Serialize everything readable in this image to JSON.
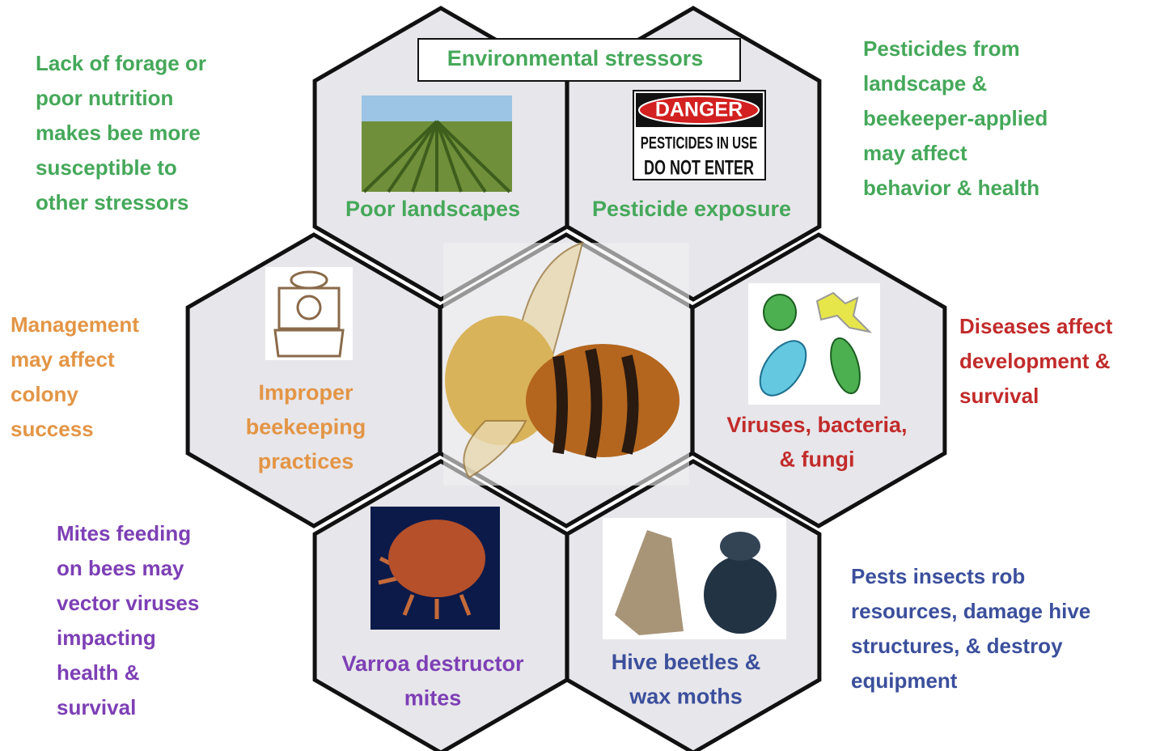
{
  "title": "Environmental stressors",
  "hexagons": [
    {
      "label": [
        "Poor landscapes"
      ]
    },
    {
      "label": [
        "Pesticide exposure"
      ],
      "sign": [
        "DANGER",
        "PESTICIDES IN USE",
        "DO NOT ENTER"
      ]
    },
    {
      "label": [
        "Improper",
        "beekeeping",
        "practices"
      ]
    },
    {
      "label": [
        "Viruses, bacteria,",
        "& fungi"
      ]
    },
    {
      "label": [
        "Varroa destructor",
        "mites"
      ]
    },
    {
      "label": [
        "Hive beetles &",
        "wax moths"
      ]
    }
  ],
  "notes": [
    {
      "lines": [
        "Lack of forage or",
        "poor nutrition",
        "makes bee more",
        "susceptible to",
        "other stressors"
      ]
    },
    {
      "lines": [
        "Pesticides from",
        "landscape &",
        "beekeeper-applied",
        "may affect",
        "behavior & health"
      ]
    },
    {
      "lines": [
        "Management",
        "may affect",
        "colony",
        "success"
      ]
    },
    {
      "lines": [
        "Diseases affect",
        "development &",
        "survival"
      ]
    },
    {
      "lines": [
        "Mites feeding",
        "on bees may",
        "vector viruses",
        "impacting",
        "health &",
        "survival"
      ]
    },
    {
      "lines": [
        "Pests insects rob",
        "resources, damage hive",
        "structures, & destroy",
        "equipment"
      ]
    }
  ]
}
